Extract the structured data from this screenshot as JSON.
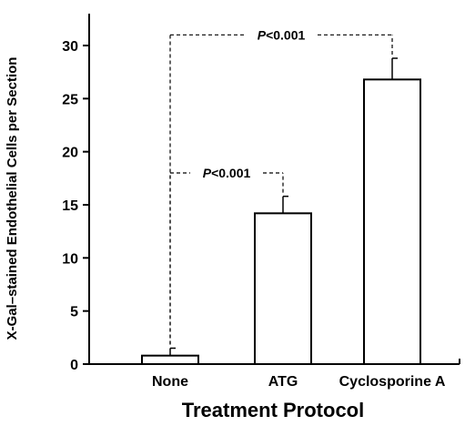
{
  "chart_data": {
    "type": "bar",
    "categories": [
      "None",
      "ATG",
      "Cyclosporine A"
    ],
    "values": [
      0.8,
      14.2,
      26.8
    ],
    "errors": [
      0.7,
      1.6,
      2.0
    ],
    "xlabel": "Treatment Protocol",
    "ylabel": "X-Gal–stained Endothelial Cells per Section",
    "ylim": [
      0,
      33
    ],
    "yticks": [
      0,
      5,
      10,
      15,
      20,
      25,
      30
    ],
    "grid": false,
    "bar_fill": "#ffffff",
    "bar_stroke": "#000000",
    "annotations": [
      {
        "prefix": "P",
        "text": "<0.001",
        "from": "None",
        "to": "ATG",
        "y": 18
      },
      {
        "prefix": "P",
        "text": "<0.001",
        "from": "None",
        "to": "Cyclosporine A",
        "y": 31
      }
    ]
  }
}
